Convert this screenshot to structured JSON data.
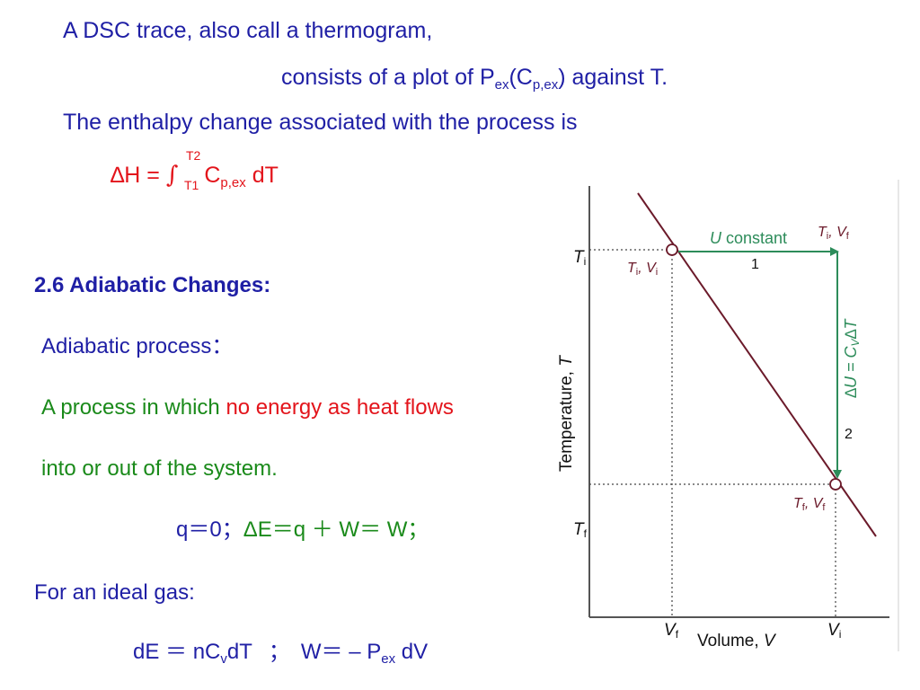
{
  "text": {
    "line1": "A DSC trace, also call a thermogram,",
    "line2": {
      "prefix": "consists of a plot of P",
      "sub1": "ex",
      "mid": "(C",
      "sub2": "p,ex",
      "suffix": ") against T."
    },
    "line3": "The enthalpy change associated with the process is",
    "enthalpy_eq": {
      "lhs": "∆H = ",
      "integral": "∫",
      "upper_limit": "T2",
      "lower_limit": "T1",
      "c": " C",
      "c_sub": "p,ex",
      "dt": " dT"
    },
    "section_title": "2.6 Adiabatic Changes:",
    "adiabatic_label": "Adiabatic process：",
    "process_def": {
      "part1": "A process in which ",
      "part2": "no energy as heat flows"
    },
    "process_def_2": "into or out of the system.",
    "first_law": {
      "blue": "q＝0；",
      "green": "ΔE＝q ＋ W＝ W；"
    },
    "ideal_gas": "For an ideal gas:",
    "ideal_eq": {
      "de": "dE ＝ nC",
      "cv_sub": "v",
      "dt": "dT",
      "sep": "；",
      "w": "W＝ – P",
      "pex_sub": "ex",
      "dv": " dV"
    }
  },
  "figure": {
    "ylabel_text": "Temperature, ",
    "ylabel_var": "T",
    "xlabel_text": "Volume, ",
    "xlabel_var": "V",
    "tick_Ti": "T",
    "tick_Ti_sub": "i",
    "tick_Tf": "T",
    "tick_Tf_sub": "f",
    "tick_Vf": "V",
    "tick_Vf_sub": "f",
    "tick_Vi": "V",
    "tick_Vi_sub": "i",
    "state_i": {
      "T": "T",
      "T_sub": "i",
      "sep": ", ",
      "V": "V",
      "V_sub": "i"
    },
    "state_mid": {
      "T": "T",
      "T_sub": "i",
      "sep": ", ",
      "V": "V",
      "V_sub": "f"
    },
    "state_f": {
      "T": "T",
      "T_sub": "f",
      "sep": ", ",
      "V": "V",
      "V_sub": "f"
    },
    "step1_label": {
      "var": "U",
      "text": " constant"
    },
    "step1_number": "1",
    "step2_label": "∆U = C",
    "step2_sub": "V",
    "step2_tail": "∆T",
    "step2_number": "2"
  },
  "colors": {
    "blue_text": "#1f1fa5",
    "red_text": "#e3141b",
    "green_text": "#1a8a1a",
    "adiabat_line": "#6b1a2a",
    "arrow": "#2d8c5a",
    "state_label": "#6b1a2a"
  }
}
